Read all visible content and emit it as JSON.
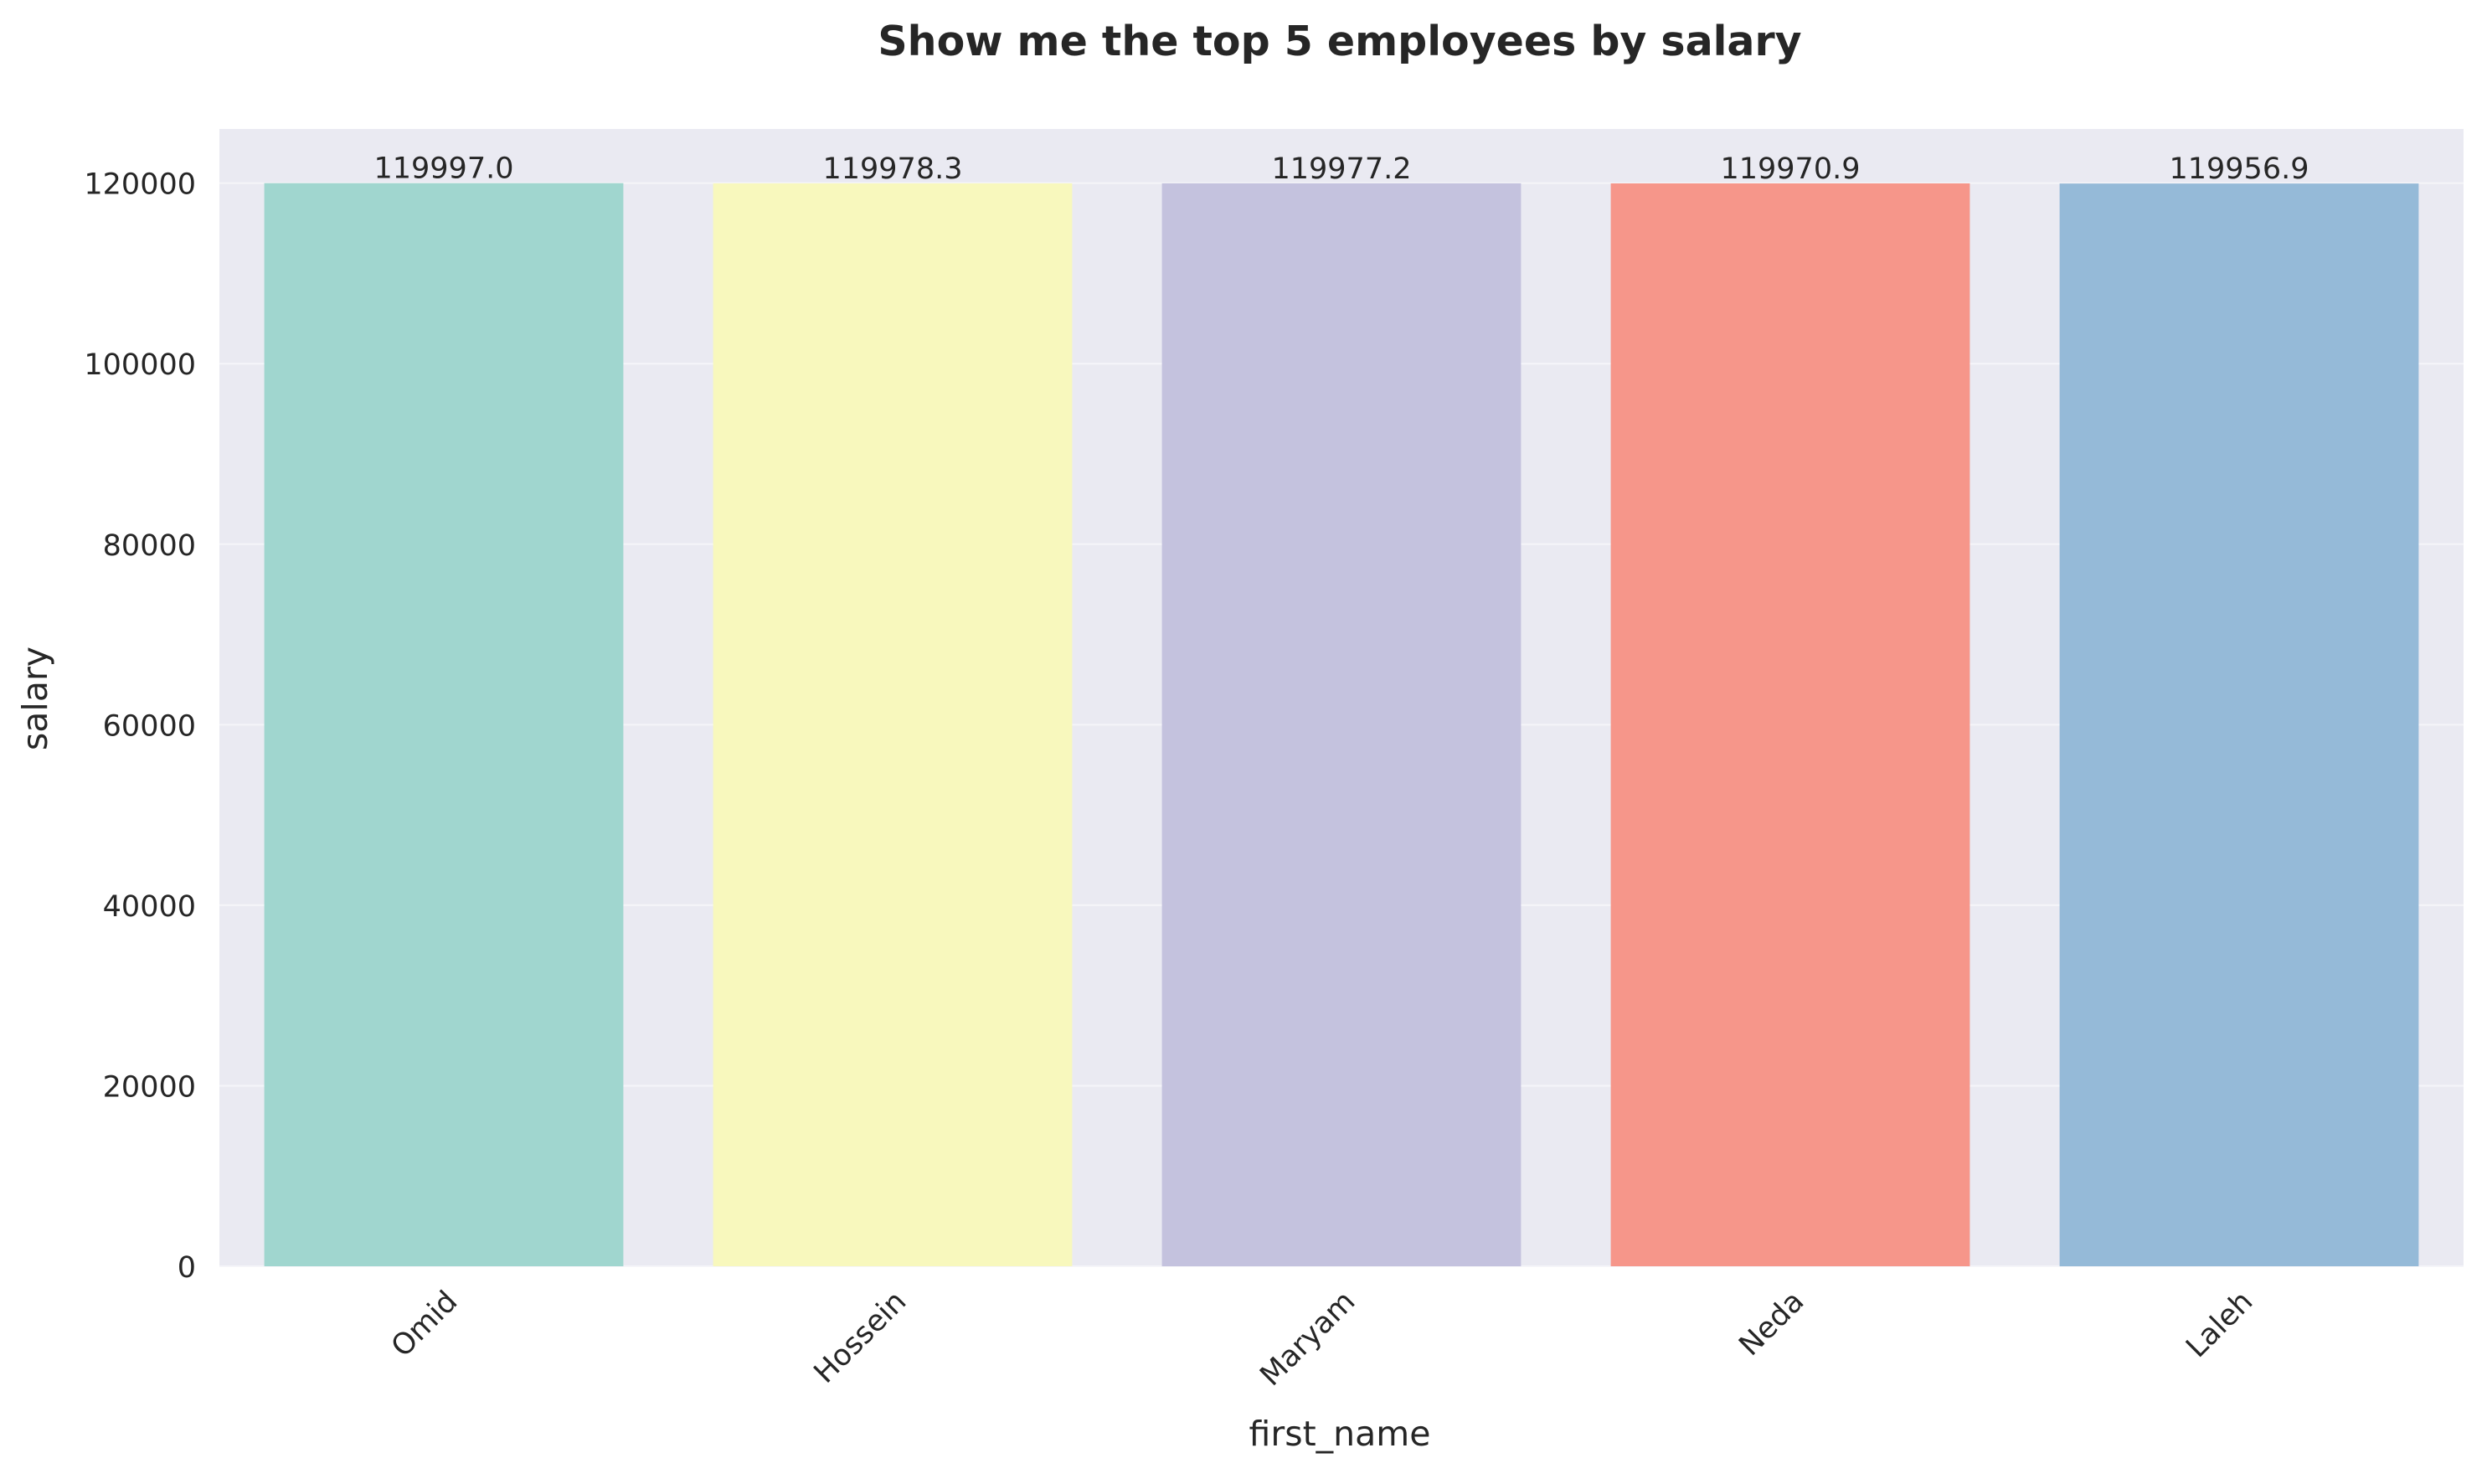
{
  "chart_data": {
    "type": "bar",
    "title": "Show me the top 5 employees by salary",
    "xlabel": "first_name",
    "ylabel": "salary",
    "categories": [
      "Omid",
      "Hossein",
      "Maryam",
      "Neda",
      "Laleh"
    ],
    "values": [
      119997.0,
      119978.3,
      119977.2,
      119970.9,
      119956.9
    ],
    "value_labels": [
      "119997.0",
      "119978.3",
      "119977.2",
      "119970.9",
      "119956.9"
    ],
    "ylim": [
      0,
      126000
    ],
    "yticks": [
      0,
      20000,
      40000,
      60000,
      80000,
      100000,
      120000
    ],
    "ytick_labels": [
      "0",
      "20000",
      "40000",
      "60000",
      "80000",
      "100000",
      "120000"
    ],
    "grid": true,
    "x_tick_rotation_deg": 45,
    "colors": {
      "bars": [
        "#a0d6cf",
        "#f8f8bd",
        "#c4c2de",
        "#f6968a",
        "#95bad8"
      ],
      "plot_background": "#eaeaf2",
      "grid": "#f5f5f9",
      "text": "#262626"
    }
  }
}
